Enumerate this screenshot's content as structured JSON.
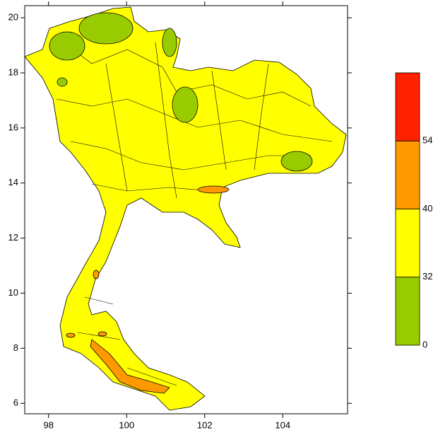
{
  "map": {
    "xlim": [
      97.39,
      105.66
    ],
    "xticks": [
      98,
      100,
      102,
      104
    ],
    "ylim": [
      5.62,
      20.44
    ],
    "yticks": [
      6,
      8,
      10,
      12,
      14,
      16,
      18,
      20
    ],
    "legend": {
      "levels": [
        0,
        32,
        40,
        54
      ],
      "colors": [
        "#99cc00",
        "#ffff00",
        "#ff9900",
        "#ff2200"
      ]
    }
  }
}
